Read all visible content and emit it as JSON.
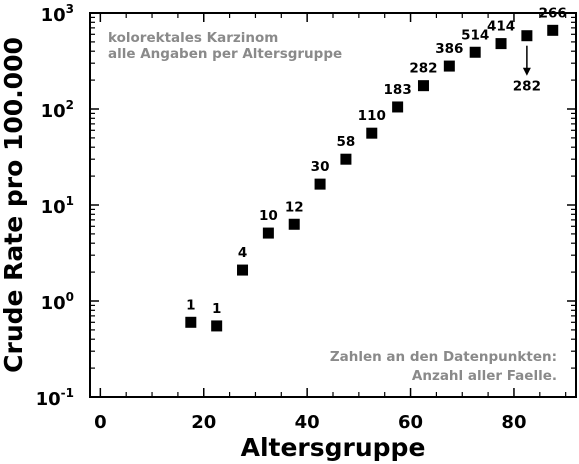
{
  "chart_data": {
    "type": "scatter",
    "title": "",
    "xlabel": "Altersgruppe",
    "ylabel": "Crude Rate pro 100.000",
    "xlim": [
      -2,
      92
    ],
    "ylim": [
      0.1,
      1000
    ],
    "yscale": "log",
    "grid": false,
    "x_ticks": [
      0,
      20,
      40,
      60,
      80
    ],
    "y_ticks": [
      {
        "value": 0.1,
        "base": "10",
        "exp": "-1"
      },
      {
        "value": 1,
        "base": "10",
        "exp": "0"
      },
      {
        "value": 10,
        "base": "10",
        "exp": "1"
      },
      {
        "value": 100,
        "base": "10",
        "exp": "2"
      },
      {
        "value": 1000,
        "base": "10",
        "exp": "3"
      }
    ],
    "annotations": {
      "top_left": [
        "kolorektales Karzinom",
        "alle Angaben per Altersgruppe"
      ],
      "bottom_right": [
        "Zahlen an den Datenpunkten:",
        "Anzahl aller Faelle."
      ]
    },
    "marker_color": "#000000",
    "note_color": "#8a8a8a",
    "points": [
      {
        "x": 17.5,
        "y": 0.6,
        "count": "1"
      },
      {
        "x": 22.5,
        "y": 0.55,
        "count": "1"
      },
      {
        "x": 27.5,
        "y": 2.1,
        "count": "4"
      },
      {
        "x": 32.5,
        "y": 5.1,
        "count": "10"
      },
      {
        "x": 37.5,
        "y": 6.3,
        "count": "12"
      },
      {
        "x": 42.5,
        "y": 16.5,
        "count": "30"
      },
      {
        "x": 47.5,
        "y": 30,
        "count": "58"
      },
      {
        "x": 52.5,
        "y": 56,
        "count": "110"
      },
      {
        "x": 57.5,
        "y": 105,
        "count": "183"
      },
      {
        "x": 62.5,
        "y": 175,
        "count": "282"
      },
      {
        "x": 67.5,
        "y": 280,
        "count": "386"
      },
      {
        "x": 72.5,
        "y": 390,
        "count": "514"
      },
      {
        "x": 77.5,
        "y": 480,
        "count": "414"
      },
      {
        "x": 82.5,
        "y": 580,
        "count": "282",
        "arrow": true
      },
      {
        "x": 87.5,
        "y": 660,
        "count": "266"
      }
    ]
  }
}
